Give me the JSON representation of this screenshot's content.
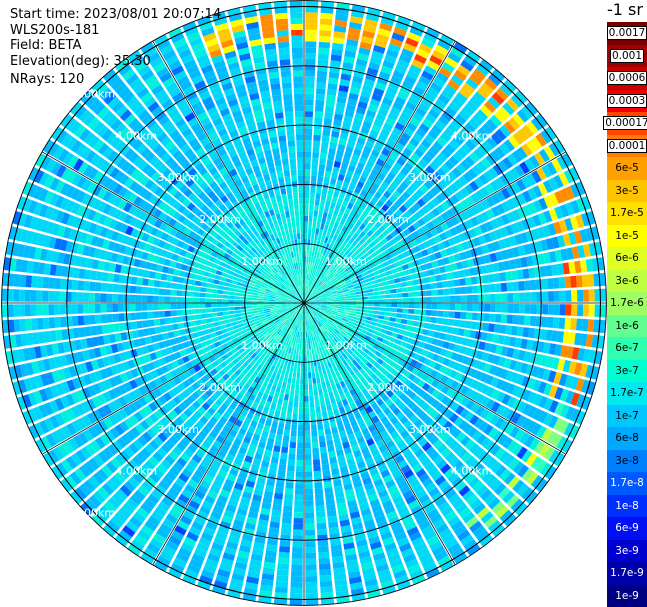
{
  "header": {
    "start_time": "Start time: 2023/08/01 20:07:14",
    "station": "WLS200s-181",
    "field": "Field: BETA",
    "elevation": "Elevation(deg): 35.30",
    "nrays": "NRays: 120"
  },
  "colorbar": {
    "unit": "-1 sr",
    "labels": [
      "0.0017",
      "0.001",
      "0.0006",
      "0.0003",
      "0.00017",
      "0.0001",
      "6e-5",
      "3e-5",
      "1.7e-5",
      "1e-5",
      "6e-6",
      "3e-6",
      "1.7e-6",
      "1e-6",
      "6e-7",
      "3e-7",
      "1.7e-7",
      "1e-7",
      "6e-8",
      "3e-8",
      "1.7e-8",
      "1e-8",
      "6e-9",
      "3e-9",
      "1.7e-9",
      "1e-9"
    ],
    "colors": [
      "#7a0000",
      "#a00000",
      "#c80000",
      "#f00000",
      "#ff4800",
      "#ff7a00",
      "#ffa000",
      "#ffc400",
      "#ffe000",
      "#ffff00",
      "#e0ff20",
      "#c0ff40",
      "#a0ff60",
      "#60ff90",
      "#30ffb0",
      "#00ffd0",
      "#00e8f0",
      "#00c8ff",
      "#00a8ff",
      "#0080ff",
      "#0058ff",
      "#0030ff",
      "#0010f0",
      "#0000d0",
      "#0000a8",
      "#000080"
    ]
  },
  "chart_data": {
    "type": "heatmap",
    "projection": "polar-ppi",
    "field": "BETA",
    "n_rays": 120,
    "elevation_deg": 35.3,
    "range_rings_km": [
      1,
      2,
      3,
      4,
      5
    ],
    "range_ring_labels": [
      "1.00km",
      "2.00km",
      "3.00km",
      "4.00km",
      "5.00km"
    ],
    "max_range_km": 5.1,
    "spoke_count": 12,
    "color_scale": "log",
    "value_range": [
      1e-09,
      0.0017
    ],
    "dominant_level": "1e-7",
    "high_band": {
      "range_km": [
        4.4,
        4.9
      ],
      "azimuth_deg": [
        -20,
        110
      ],
      "level": "6e-5"
    },
    "high_band_secondary": {
      "range_km": [
        4.6,
        4.9
      ],
      "azimuth_deg": [
        110,
        150
      ],
      "level": "1e-5"
    }
  }
}
